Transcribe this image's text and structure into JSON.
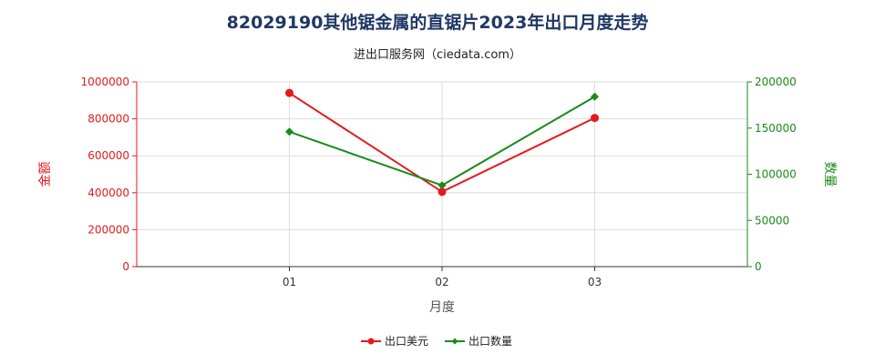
{
  "chart_data": {
    "type": "line",
    "title": "82029190其他锯金属的直锯片2023年出口月度走势",
    "subtitle": "进出口服务网（ciedata.com）",
    "categories": [
      "01",
      "02",
      "03"
    ],
    "xlabel": "月度",
    "ylabel_left": "金额",
    "ylabel_right": "数量",
    "ylim_left": [
      0,
      1000000
    ],
    "ylim_right": [
      0,
      200000
    ],
    "yticks_left": [
      "0",
      "200000",
      "400000",
      "600000",
      "800000",
      "1000000"
    ],
    "yticks_right": [
      "0",
      "50000",
      "100000",
      "150000",
      "200000"
    ],
    "series": [
      {
        "name": "出口美元",
        "axis": "left",
        "color": "#e31a1c",
        "marker": "circle",
        "values": [
          940000,
          405000,
          805000
        ]
      },
      {
        "name": "出口数量",
        "axis": "right",
        "color": "#1a8a1a",
        "marker": "diamond",
        "values": [
          146000,
          88000,
          184000
        ]
      }
    ],
    "grid": true,
    "legend_position": "bottom",
    "colors": {
      "left_axis": "#e31a1c",
      "right_axis": "#1a8a1a",
      "title": "#1f3864"
    }
  }
}
